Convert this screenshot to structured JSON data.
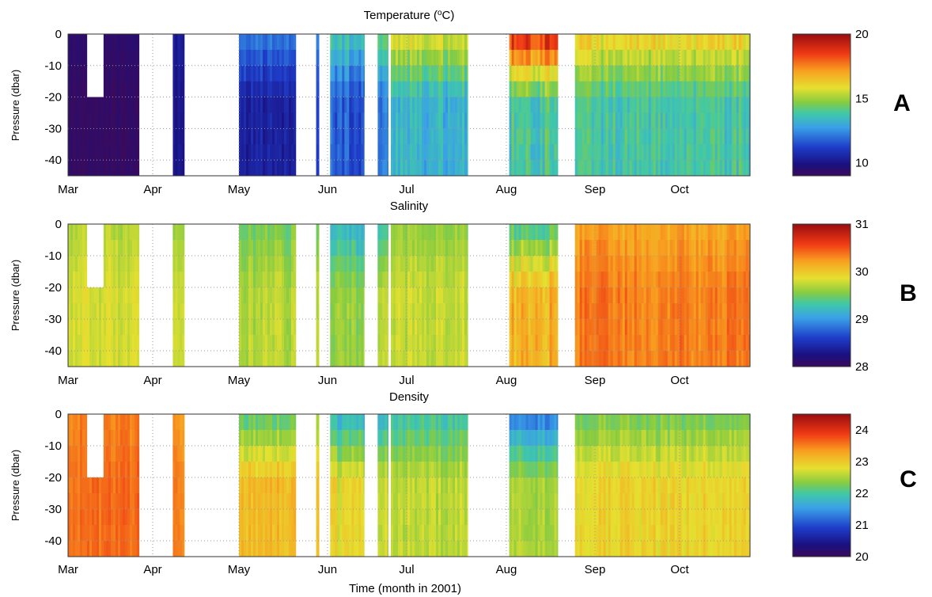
{
  "figure": {
    "xlabel": "Time (month in 2001)"
  },
  "chart_data": [
    {
      "type": "heatmap",
      "title": "Temperature (°C)",
      "title_main": "Temperature (",
      "title_unit_sup": "o",
      "title_unit_after": "C)",
      "panel_label": "A",
      "ylabel": "Pressure (dbar)",
      "yticks": [
        0,
        -10,
        -20,
        -30,
        -40
      ],
      "ylim": [
        -45,
        0
      ],
      "xticks": [
        "Mar",
        "Apr",
        "May",
        "Jun",
        "Jul",
        "Aug",
        "Sep",
        "Oct"
      ],
      "colorbar": {
        "min": 9,
        "max": 20,
        "ticks": [
          10,
          15,
          20
        ]
      },
      "segments": [
        {
          "start": "Mar 1",
          "end": "Mar 27",
          "depth_min": -45,
          "mean": 9.2,
          "surface": 9.4,
          "noise": 0.2
        },
        {
          "start": "Apr 8",
          "end": "Apr 12",
          "depth_min": -45,
          "mean": 10.0,
          "surface": 10.2,
          "noise": 0.2
        },
        {
          "start": "May 1",
          "end": "May 21",
          "depth_min": -45,
          "mean": 10.4,
          "surface": 12.0,
          "noise": 0.4
        },
        {
          "start": "May 28",
          "end": "May 29",
          "depth_min": -45,
          "mean": 11.0,
          "surface": 12.0,
          "noise": 0.3
        },
        {
          "start": "Jun 2",
          "end": "Jun 15",
          "depth_min": -45,
          "mean": 11.6,
          "surface": 13.5,
          "noise": 0.5
        },
        {
          "start": "Jun 20",
          "end": "Jun 24",
          "depth_min": -45,
          "mean": 12.0,
          "surface": 14.0,
          "noise": 0.5
        },
        {
          "start": "Jun 25",
          "end": "Jul 20",
          "depth_min": -45,
          "mean": 13.2,
          "surface": 15.5,
          "noise": 0.5
        },
        {
          "start": "Aug 2",
          "end": "Aug 19",
          "depth_min": -45,
          "mean": 13.8,
          "surface": 18.5,
          "noise": 0.6
        },
        {
          "start": "Aug 25",
          "end": "Oct 30",
          "depth_min": -45,
          "mean": 13.8,
          "surface": 16.0,
          "noise": 0.5
        }
      ],
      "gaps": [
        {
          "start": "Mar 8",
          "end": "Mar 14",
          "depth_min": -20
        },
        {
          "start": "Apr 2",
          "end": "Apr 8",
          "depth_min": -45,
          "depth_max": -20
        },
        {
          "start": "May 21",
          "end": "May 28",
          "depth_min": -45,
          "depth_max": 0
        },
        {
          "start": "Jun 15",
          "end": "Jun 20",
          "depth_min": -45,
          "depth_max": -20
        }
      ]
    },
    {
      "type": "heatmap",
      "title": "Salinity",
      "panel_label": "B",
      "ylabel": "Pressure (dbar)",
      "yticks": [
        0,
        -10,
        -20,
        -30,
        -40
      ],
      "ylim": [
        -45,
        0
      ],
      "xticks": [
        "Mar",
        "Apr",
        "May",
        "Jun",
        "Jul",
        "Aug",
        "Sep",
        "Oct"
      ],
      "colorbar": {
        "min": 28,
        "max": 31,
        "ticks": [
          28,
          29,
          30,
          31
        ]
      },
      "segments": [
        {
          "start": "Mar 1",
          "end": "Mar 27",
          "depth_min": -45,
          "mean": 29.8,
          "surface": 29.7,
          "noise": 0.08
        },
        {
          "start": "Apr 8",
          "end": "Apr 12",
          "depth_min": -45,
          "mean": 29.75,
          "surface": 29.6,
          "noise": 0.08
        },
        {
          "start": "May 1",
          "end": "May 21",
          "depth_min": -45,
          "mean": 29.7,
          "surface": 29.5,
          "noise": 0.1
        },
        {
          "start": "May 28",
          "end": "May 29",
          "depth_min": -45,
          "mean": 29.7,
          "surface": 29.5,
          "noise": 0.1
        },
        {
          "start": "Jun 2",
          "end": "Jun 15",
          "depth_min": -45,
          "mean": 29.6,
          "surface": 29.2,
          "noise": 0.12
        },
        {
          "start": "Jun 20",
          "end": "Jun 24",
          "depth_min": -45,
          "mean": 29.7,
          "surface": 29.3,
          "noise": 0.1
        },
        {
          "start": "Jun 25",
          "end": "Jul 20",
          "depth_min": -45,
          "mean": 29.75,
          "surface": 29.6,
          "noise": 0.1
        },
        {
          "start": "Aug 2",
          "end": "Aug 19",
          "depth_min": -45,
          "mean": 30.1,
          "surface": 29.4,
          "noise": 0.15
        },
        {
          "start": "Aug 25",
          "end": "Oct 30",
          "depth_min": -45,
          "mean": 30.35,
          "surface": 30.2,
          "noise": 0.1
        }
      ],
      "gaps": [
        {
          "start": "Mar 8",
          "end": "Mar 14",
          "depth_min": -20
        },
        {
          "start": "Apr 2",
          "end": "Apr 8",
          "depth_min": -45,
          "depth_max": -20
        },
        {
          "start": "May 21",
          "end": "May 28",
          "depth_min": -45,
          "depth_max": 0
        },
        {
          "start": "Jun 15",
          "end": "Jun 20",
          "depth_min": -45,
          "depth_max": -20
        }
      ]
    },
    {
      "type": "heatmap",
      "title": "Density",
      "panel_label": "C",
      "ylabel": "Pressure (dbar)",
      "yticks": [
        0,
        -10,
        -20,
        -30,
        -40
      ],
      "ylim": [
        -45,
        0
      ],
      "xticks": [
        "Mar",
        "Apr",
        "May",
        "Jun",
        "Jul",
        "Aug",
        "Sep",
        "Oct"
      ],
      "xlabel": "Time (month in 2001)",
      "colorbar": {
        "min": 20,
        "max": 24.5,
        "ticks": [
          20,
          21,
          22,
          23,
          24
        ]
      },
      "segments": [
        {
          "start": "Mar 1",
          "end": "Mar 27",
          "depth_min": -45,
          "mean": 23.6,
          "surface": 23.5,
          "noise": 0.12
        },
        {
          "start": "Apr 8",
          "end": "Apr 12",
          "depth_min": -45,
          "mean": 23.5,
          "surface": 23.4,
          "noise": 0.12
        },
        {
          "start": "May 1",
          "end": "May 21",
          "depth_min": -45,
          "mean": 23.1,
          "surface": 22.2,
          "noise": 0.15
        },
        {
          "start": "May 28",
          "end": "May 29",
          "depth_min": -45,
          "mean": 23.0,
          "surface": 22.4,
          "noise": 0.15
        },
        {
          "start": "Jun 2",
          "end": "Jun 15",
          "depth_min": -45,
          "mean": 22.8,
          "surface": 21.8,
          "noise": 0.18
        },
        {
          "start": "Jun 20",
          "end": "Jun 24",
          "depth_min": -45,
          "mean": 22.7,
          "surface": 21.9,
          "noise": 0.15
        },
        {
          "start": "Jun 25",
          "end": "Jul 20",
          "depth_min": -45,
          "mean": 22.6,
          "surface": 22.0,
          "noise": 0.15
        },
        {
          "start": "Aug 2",
          "end": "Aug 19",
          "depth_min": -45,
          "mean": 22.5,
          "surface": 21.4,
          "noise": 0.15
        },
        {
          "start": "Aug 25",
          "end": "Oct 30",
          "depth_min": -45,
          "mean": 22.9,
          "surface": 22.3,
          "noise": 0.15
        }
      ],
      "gaps": [
        {
          "start": "Mar 8",
          "end": "Mar 14",
          "depth_min": -20
        },
        {
          "start": "Apr 2",
          "end": "Apr 8",
          "depth_min": -45,
          "depth_max": -20
        },
        {
          "start": "May 21",
          "end": "May 28",
          "depth_min": -45,
          "depth_max": 0
        },
        {
          "start": "Jun 15",
          "end": "Jun 20",
          "depth_min": -45,
          "depth_max": -20
        }
      ]
    }
  ]
}
